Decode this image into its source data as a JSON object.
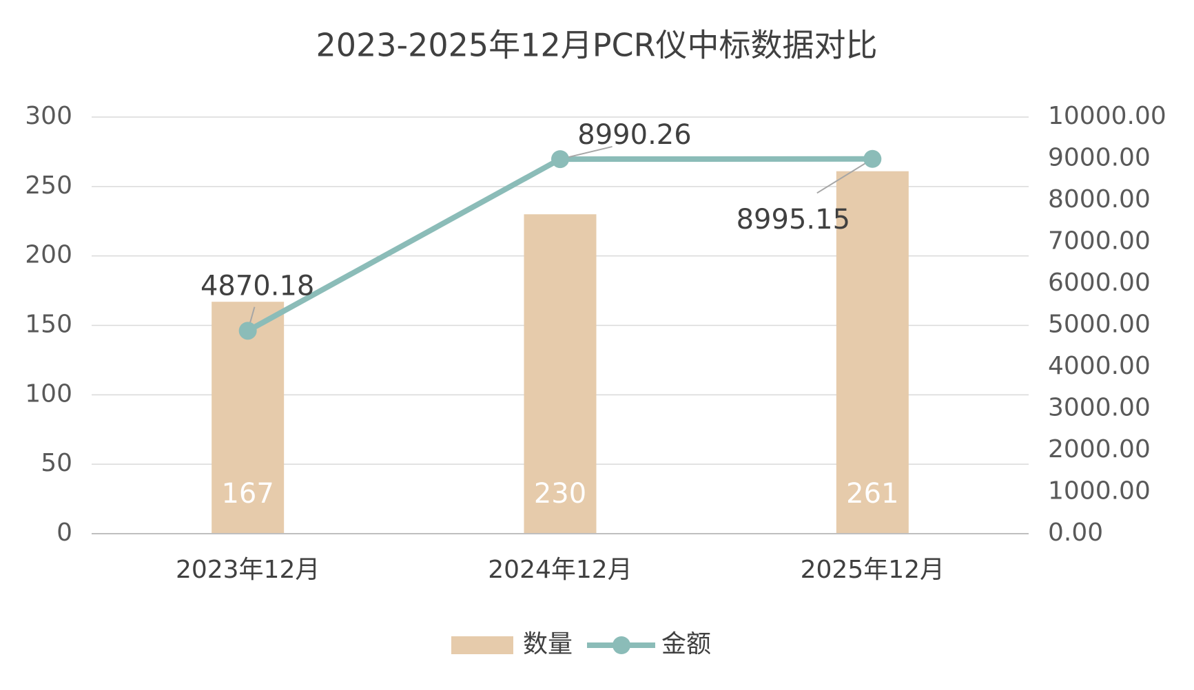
{
  "chart_data": {
    "type": "bar",
    "title": "2023-2025年12月PCR仪中标数据对比",
    "categories": [
      "2023年12月",
      "2024年12月",
      "2025年12月"
    ],
    "series": [
      {
        "name": "数量",
        "type": "bar",
        "color": "#e6cbab",
        "values": [
          167,
          230,
          261
        ]
      },
      {
        "name": "金额",
        "type": "line",
        "axis": "y2",
        "color": "#8bbcb8",
        "values": [
          4870.18,
          8990.26,
          8995.15
        ]
      }
    ],
    "ylim": [
      0,
      300
    ],
    "yticks": [
      0,
      50,
      100,
      150,
      200,
      250,
      300
    ],
    "y2lim": [
      0,
      10000
    ],
    "y2ticks": [
      {
        "value": 0,
        "label": "0.00"
      },
      {
        "value": 1000,
        "label": "1000.00"
      },
      {
        "value": 2000,
        "label": "2000.00"
      },
      {
        "value": 3000,
        "label": "3000.00"
      },
      {
        "value": 4000,
        "label": "4000.00"
      },
      {
        "value": 5000,
        "label": "5000.00"
      },
      {
        "value": 6000,
        "label": "6000.00"
      },
      {
        "value": 7000,
        "label": "7000.00"
      },
      {
        "value": 8000,
        "label": "8000.00"
      },
      {
        "value": 9000,
        "label": "9000.00"
      },
      {
        "value": 10000,
        "label": "10000.00"
      }
    ],
    "grid": true,
    "legend": "bottom"
  }
}
